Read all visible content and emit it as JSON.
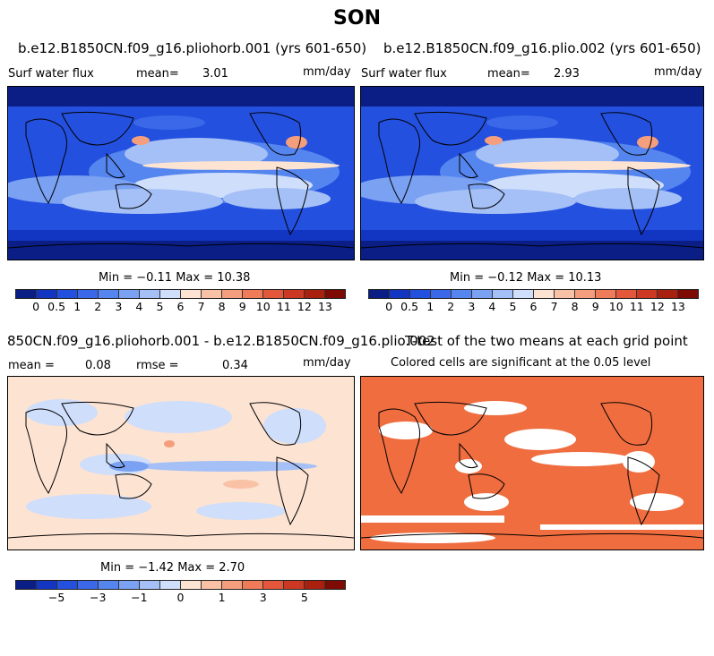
{
  "title": "SON",
  "panels": [
    {
      "case": "b.e12.B1850CN.f09_g16.pliohorb.001 (yrs 601-650)",
      "variable": "Surf water flux",
      "mean_label": "mean=",
      "mean": "3.01",
      "units": "mm/day",
      "minmax": "Min =  −0.11  Max =  10.38"
    },
    {
      "case": "b.e12.B1850CN.f09_g16.plio.002 (yrs 601-650)",
      "variable": "Surf water flux",
      "mean_label": "mean=",
      "mean": "2.93",
      "units": "mm/day",
      "minmax": "Min =  −0.12  Max =  10.13"
    },
    {
      "case": "850CN.f09_g16.pliohorb.001 - b.e12.B1850CN.f09_g16.plio.002",
      "mean_label": "mean =",
      "mean": "0.08",
      "rmse_label": "rmse =",
      "rmse": "0.34",
      "units": "mm/day",
      "minmax": "Min =  −1.42  Max =   2.70"
    },
    {
      "case": "T-test of the two means at each grid point",
      "note": "Colored cells are significant at the 0.05 level"
    }
  ],
  "colorbar_abs": {
    "colors": [
      "#0a1e86",
      "#1336c2",
      "#2450df",
      "#3a68e8",
      "#5585ee",
      "#7aa1f2",
      "#a4c0f6",
      "#cfdefb",
      "#fde3d2",
      "#f9c2a6",
      "#f59e7e",
      "#ef7b58",
      "#e5573a",
      "#cd3823",
      "#a9200f",
      "#7d0b03"
    ],
    "labels": [
      "0",
      "0.5",
      "1",
      "2",
      "3",
      "4",
      "5",
      "6",
      "7",
      "8",
      "9",
      "10",
      "11",
      "12",
      "13"
    ]
  },
  "colorbar_diff": {
    "colors": [
      "#0a1e86",
      "#1336c2",
      "#2450df",
      "#3a68e8",
      "#5585ee",
      "#7aa1f2",
      "#a4c0f6",
      "#cfdefb",
      "#fde3d2",
      "#f9c2a6",
      "#f59e7e",
      "#ef7b58",
      "#e5573a",
      "#cd3823",
      "#a9200f",
      "#7d0b03"
    ],
    "labels": [
      "−5",
      "−3",
      "−1",
      "0",
      "1",
      "3",
      "5"
    ]
  },
  "map_colors": {
    "abs_background": "#2450df",
    "diff_background": "#fde3d2",
    "ttest_color": "#ef6d3f"
  }
}
